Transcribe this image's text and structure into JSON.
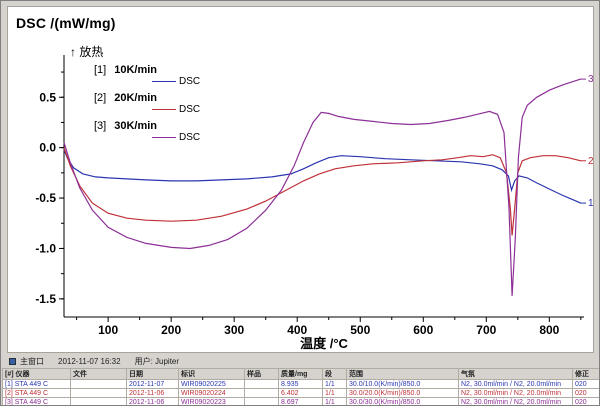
{
  "window": {
    "statusbar": {
      "label": "主窗口",
      "timestamp": "2012-11-07 16:32",
      "user": "用户: Jupiter"
    }
  },
  "chart": {
    "title": "DSC /(mW/mg)",
    "exo_label": "↑ 放热",
    "legend": [
      {
        "index": "[1]",
        "rate": "10K/min",
        "signal": "DSC",
        "color": "#2b35b0"
      },
      {
        "index": "[2]",
        "rate": "20K/min",
        "signal": "DSC",
        "color": "#c03038"
      },
      {
        "index": "[3]",
        "rate": "30K/min",
        "signal": "DSC",
        "color": "#8c2f96"
      }
    ]
  },
  "chart_data": {
    "type": "line",
    "title": "DSC curves at three heating rates",
    "xlabel": "温度 /°C",
    "ylabel": "DSC /(mW/mg)",
    "xlim": [
      30,
      855
    ],
    "ylim": [
      -1.68,
      0.82
    ],
    "x_ticks": [
      100,
      200,
      300,
      400,
      500,
      600,
      700,
      800
    ],
    "y_tick_values": [
      0.5,
      0.0,
      -0.5,
      -1.0,
      -1.5
    ],
    "y_tick_labels": [
      "0.5",
      "0.0",
      "-0.5",
      "-1.0",
      "-1.5"
    ],
    "grid": false,
    "legend_position": "upper-left",
    "series": [
      {
        "name": "10K/min DSC",
        "color": "#2b35b0",
        "end_label": "1",
        "points": [
          [
            30,
            -0.02
          ],
          [
            35,
            -0.1
          ],
          [
            45,
            -0.2
          ],
          [
            60,
            -0.26
          ],
          [
            80,
            -0.29
          ],
          [
            100,
            -0.3
          ],
          [
            130,
            -0.31
          ],
          [
            160,
            -0.32
          ],
          [
            200,
            -0.33
          ],
          [
            240,
            -0.33
          ],
          [
            280,
            -0.32
          ],
          [
            320,
            -0.31
          ],
          [
            360,
            -0.29
          ],
          [
            390,
            -0.26
          ],
          [
            410,
            -0.21
          ],
          [
            430,
            -0.15
          ],
          [
            450,
            -0.1
          ],
          [
            470,
            -0.08
          ],
          [
            500,
            -0.09
          ],
          [
            540,
            -0.11
          ],
          [
            580,
            -0.12
          ],
          [
            620,
            -0.13
          ],
          [
            660,
            -0.14
          ],
          [
            690,
            -0.16
          ],
          [
            710,
            -0.18
          ],
          [
            725,
            -0.22
          ],
          [
            735,
            -0.28
          ],
          [
            740,
            -0.42
          ],
          [
            745,
            -0.33
          ],
          [
            752,
            -0.28
          ],
          [
            765,
            -0.3
          ],
          [
            780,
            -0.35
          ],
          [
            800,
            -0.41
          ],
          [
            820,
            -0.47
          ],
          [
            835,
            -0.51
          ],
          [
            850,
            -0.55
          ]
        ]
      },
      {
        "name": "20K/min DSC",
        "color": "#c03038",
        "end_label": "2",
        "points": [
          [
            30,
            0.0
          ],
          [
            40,
            -0.18
          ],
          [
            55,
            -0.38
          ],
          [
            75,
            -0.55
          ],
          [
            100,
            -0.65
          ],
          [
            130,
            -0.7
          ],
          [
            160,
            -0.72
          ],
          [
            200,
            -0.73
          ],
          [
            240,
            -0.72
          ],
          [
            280,
            -0.68
          ],
          [
            320,
            -0.61
          ],
          [
            350,
            -0.53
          ],
          [
            380,
            -0.43
          ],
          [
            410,
            -0.33
          ],
          [
            435,
            -0.26
          ],
          [
            460,
            -0.21
          ],
          [
            490,
            -0.18
          ],
          [
            520,
            -0.16
          ],
          [
            560,
            -0.15
          ],
          [
            600,
            -0.13
          ],
          [
            630,
            -0.12
          ],
          [
            655,
            -0.1
          ],
          [
            675,
            -0.08
          ],
          [
            695,
            -0.09
          ],
          [
            710,
            -0.07
          ],
          [
            722,
            -0.1
          ],
          [
            732,
            -0.25
          ],
          [
            738,
            -0.6
          ],
          [
            741,
            -0.87
          ],
          [
            745,
            -0.6
          ],
          [
            750,
            -0.25
          ],
          [
            757,
            -0.13
          ],
          [
            770,
            -0.1
          ],
          [
            790,
            -0.08
          ],
          [
            810,
            -0.08
          ],
          [
            830,
            -0.1
          ],
          [
            850,
            -0.13
          ]
        ]
      },
      {
        "name": "30K/min DSC",
        "color": "#8c2f96",
        "end_label": "3",
        "points": [
          [
            30,
            0.05
          ],
          [
            40,
            -0.15
          ],
          [
            55,
            -0.4
          ],
          [
            75,
            -0.62
          ],
          [
            100,
            -0.79
          ],
          [
            130,
            -0.89
          ],
          [
            160,
            -0.95
          ],
          [
            200,
            -0.99
          ],
          [
            230,
            -1.0
          ],
          [
            260,
            -0.97
          ],
          [
            290,
            -0.91
          ],
          [
            320,
            -0.8
          ],
          [
            350,
            -0.62
          ],
          [
            375,
            -0.42
          ],
          [
            395,
            -0.18
          ],
          [
            410,
            0.05
          ],
          [
            425,
            0.25
          ],
          [
            438,
            0.35
          ],
          [
            450,
            0.34
          ],
          [
            465,
            0.31
          ],
          [
            490,
            0.28
          ],
          [
            520,
            0.26
          ],
          [
            550,
            0.24
          ],
          [
            580,
            0.23
          ],
          [
            610,
            0.24
          ],
          [
            640,
            0.27
          ],
          [
            665,
            0.3
          ],
          [
            685,
            0.33
          ],
          [
            705,
            0.36
          ],
          [
            718,
            0.33
          ],
          [
            728,
            0.15
          ],
          [
            736,
            -0.6
          ],
          [
            741,
            -1.47
          ],
          [
            746,
            -0.9
          ],
          [
            751,
            -0.1
          ],
          [
            757,
            0.3
          ],
          [
            765,
            0.42
          ],
          [
            780,
            0.5
          ],
          [
            800,
            0.57
          ],
          [
            820,
            0.62
          ],
          [
            840,
            0.66
          ],
          [
            850,
            0.68
          ]
        ]
      }
    ]
  },
  "table": {
    "headers": [
      "[#] 仪器",
      "文件",
      "日期",
      "标识",
      "样品",
      "质量/mg",
      "段",
      "范围",
      "气氛",
      "修正"
    ],
    "rows": [
      {
        "color": "#2b35b0",
        "cells": [
          "[1] STA 449 C",
          "",
          "2012-11-07",
          "WIR09020225",
          "",
          "8.935",
          "1/1",
          "30.0/10.0(K/min)/850.0",
          "N2, 30.0ml/min / N2, 20.0ml/min",
          "020"
        ]
      },
      {
        "color": "#c03038",
        "cells": [
          "[2] STA 449 C",
          "",
          "2012-11-06",
          "WIR09020224",
          "",
          "6.402",
          "1/1",
          "30.0/20.0(K/min)/850.0",
          "N2, 30.0ml/min / N2, 20.0ml/min",
          "020"
        ]
      },
      {
        "color": "#8c2f96",
        "cells": [
          "[3] STA 449 C",
          "",
          "2012-11-06",
          "WIR09020223",
          "",
          "8.697",
          "1/1",
          "30.0/30.0(K/min)/850.0",
          "N2, 30.0ml/min / N2, 20.0ml/min",
          "020"
        ]
      }
    ]
  }
}
